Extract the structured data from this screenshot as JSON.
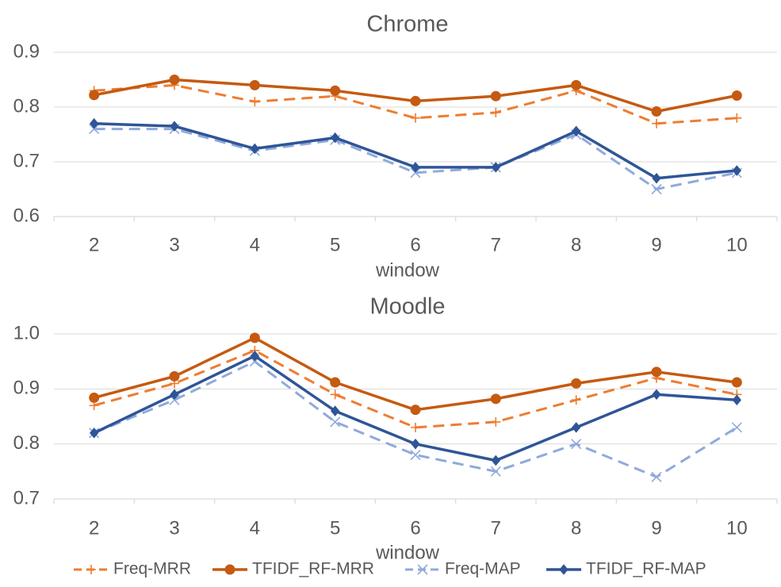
{
  "chart_data": [
    {
      "type": "line",
      "title": "Chrome",
      "xlabel": "window",
      "ylabel": "",
      "x": [
        2,
        3,
        4,
        5,
        6,
        7,
        8,
        9,
        10
      ],
      "ylim": [
        0.6,
        0.9
      ],
      "yticks": [
        "0.6",
        "0.7",
        "0.8",
        "0.9"
      ],
      "grid": true,
      "series": [
        {
          "name": "Freq-MRR",
          "values": [
            0.83,
            0.84,
            0.81,
            0.82,
            0.78,
            0.79,
            0.83,
            0.77,
            0.78
          ]
        },
        {
          "name": "TFIDF_RF-MRR",
          "values": [
            0.822,
            0.85,
            0.84,
            0.83,
            0.811,
            0.82,
            0.84,
            0.792,
            0.821
          ]
        },
        {
          "name": "Freq-MAP",
          "values": [
            0.76,
            0.76,
            0.72,
            0.74,
            0.68,
            0.69,
            0.75,
            0.65,
            0.68
          ]
        },
        {
          "name": "TFIDF_RF-MAP",
          "values": [
            0.77,
            0.765,
            0.724,
            0.744,
            0.69,
            0.69,
            0.756,
            0.67,
            0.684
          ]
        }
      ]
    },
    {
      "type": "line",
      "title": "Moodle",
      "xlabel": "window",
      "ylabel": "",
      "x": [
        2,
        3,
        4,
        5,
        6,
        7,
        8,
        9,
        10
      ],
      "ylim": [
        0.7,
        1.0
      ],
      "yticks": [
        "0.7",
        "0.8",
        "0.9",
        "1.0"
      ],
      "grid": true,
      "series": [
        {
          "name": "Freq-MRR",
          "values": [
            0.87,
            0.91,
            0.97,
            0.89,
            0.83,
            0.84,
            0.88,
            0.92,
            0.89
          ]
        },
        {
          "name": "TFIDF_RF-MRR",
          "values": [
            0.884,
            0.923,
            0.993,
            0.912,
            0.862,
            0.882,
            0.91,
            0.931,
            0.912
          ]
        },
        {
          "name": "Freq-MAP",
          "values": [
            0.82,
            0.88,
            0.95,
            0.84,
            0.78,
            0.75,
            0.8,
            0.74,
            0.83
          ]
        },
        {
          "name": "TFIDF_RF-MAP",
          "values": [
            0.82,
            0.89,
            0.96,
            0.86,
            0.8,
            0.77,
            0.83,
            0.89,
            0.88
          ]
        }
      ]
    }
  ],
  "legend": {
    "placement": "bottom",
    "items": [
      "Freq-MRR",
      "TFIDF_RF-MRR",
      "Freq-MAP",
      "TFIDF_RF-MAP"
    ]
  },
  "series_styles": [
    {
      "color": "#ed7d31",
      "dash": "dashed",
      "marker": "plus"
    },
    {
      "color": "#c55a11",
      "dash": "solid",
      "marker": "circle"
    },
    {
      "color": "#8faadc",
      "dash": "dashed",
      "marker": "x"
    },
    {
      "color": "#2f5597",
      "dash": "solid",
      "marker": "diamond"
    }
  ]
}
